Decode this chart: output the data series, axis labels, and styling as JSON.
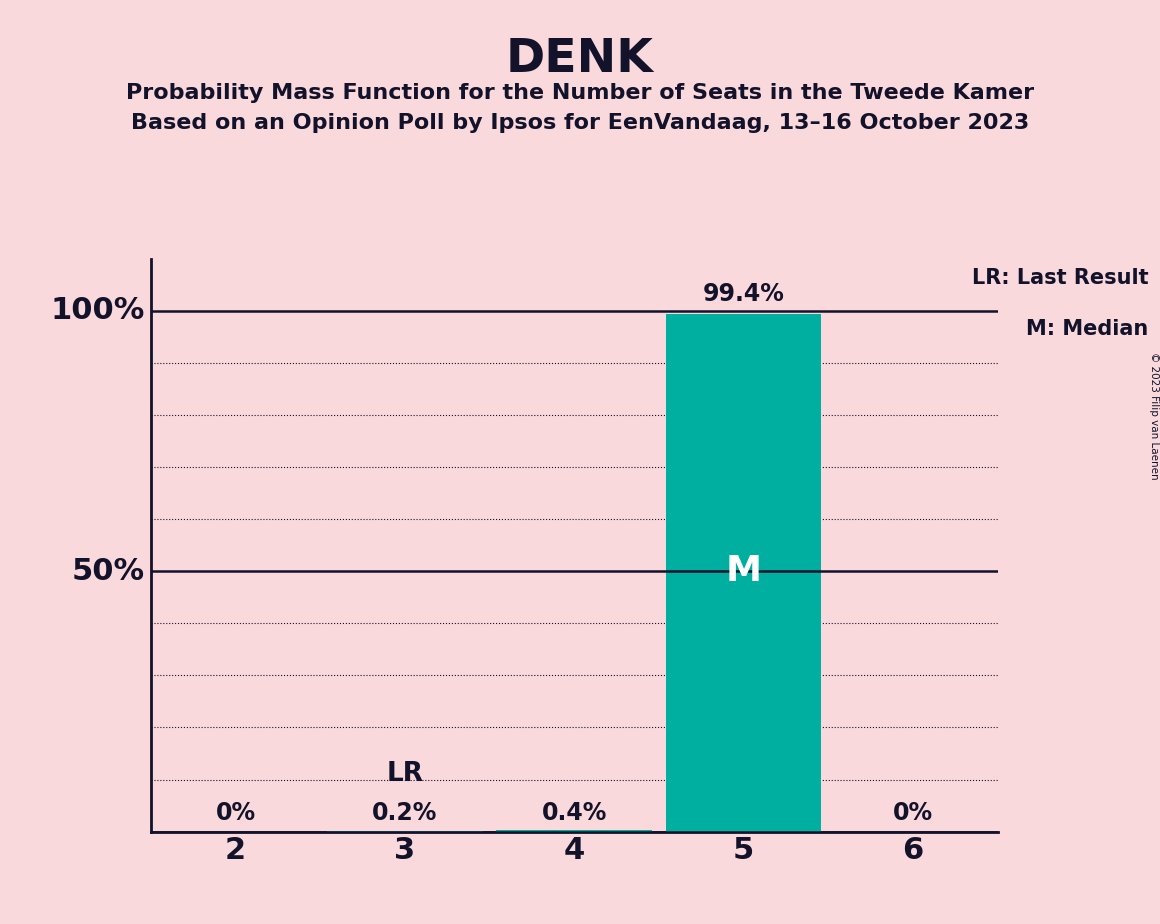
{
  "title": "DENK",
  "subtitle1": "Probability Mass Function for the Number of Seats in the Tweede Kamer",
  "subtitle2": "Based on an Opinion Poll by Ipsos for EenVandaag, 13–16 October 2023",
  "copyright": "© 2023 Filip van Laenen",
  "categories": [
    2,
    3,
    4,
    5,
    6
  ],
  "values": [
    0.0,
    0.002,
    0.004,
    0.994,
    0.0
  ],
  "bar_color": "#00AFA0",
  "background_color": "#FAD9DC",
  "text_color": "#12122A",
  "bar_labels": [
    "0%",
    "0.2%",
    "0.4%",
    "99.4%",
    "0%"
  ],
  "median_seat": 5,
  "last_result_seat": 3,
  "xlim": [
    1.5,
    6.5
  ],
  "ylim": [
    0.0,
    1.1
  ],
  "legend_lr": "LR: Last Result",
  "legend_m": "M: Median",
  "bar_width": 0.92
}
